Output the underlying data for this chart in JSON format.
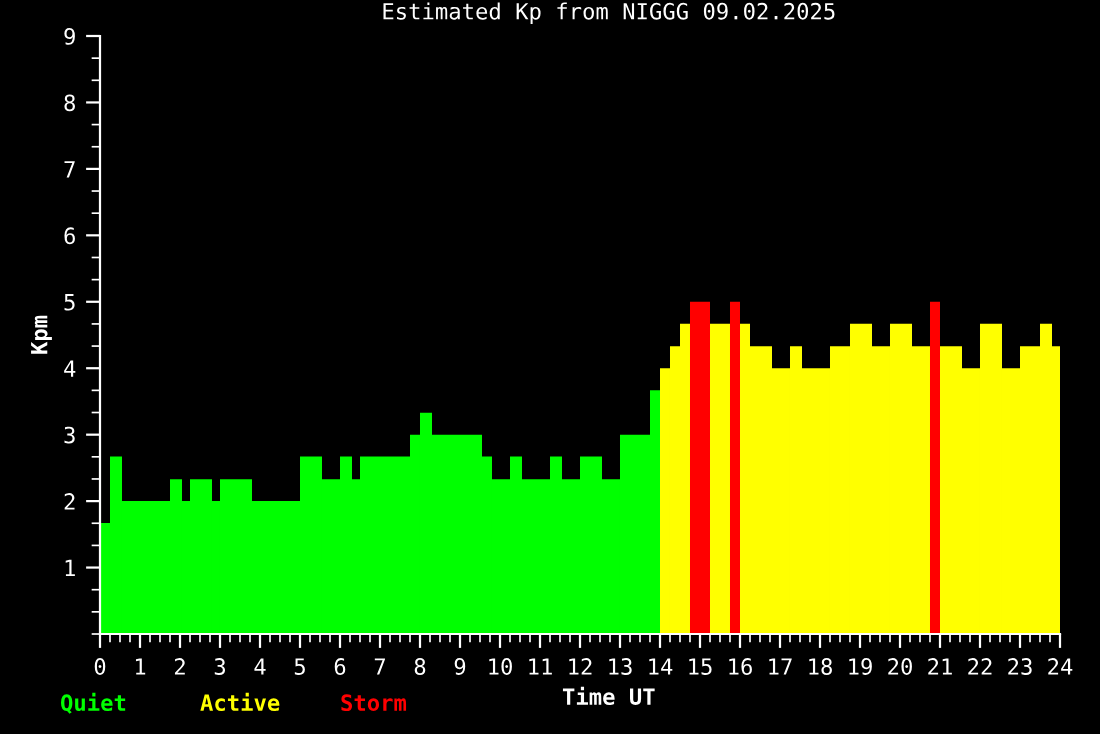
{
  "chart_data": {
    "type": "histogram",
    "title": "Estimated Kp from NIGGG 09.02.2025",
    "xlabel": "Time UT",
    "ylabel": "Kpm",
    "bins": [
      0,
      0.25,
      0.55,
      1.75,
      2.05,
      2.25,
      2.8,
      3.0,
      3.8,
      5.0,
      5.55,
      6.0,
      6.3,
      6.5,
      7.75,
      8.0,
      8.3,
      9.55,
      9.8,
      10.25,
      10.55,
      11.25,
      11.55,
      12.0,
      12.55,
      13.0,
      13.75,
      14.0,
      14.25,
      14.5,
      14.75,
      15.25,
      15.75,
      16.0,
      16.25,
      16.8,
      17.25,
      17.55,
      18.25,
      18.75,
      19.3,
      19.75,
      20.3,
      20.75,
      21.0,
      21.55,
      22.0,
      22.55,
      23.0,
      23.5,
      23.8,
      24
    ],
    "series": [
      {
        "name": "Quiet",
        "color": "#00ff00",
        "values": [
          1.67,
          2.67,
          2.0,
          2.33,
          2.0,
          2.33,
          2.0,
          2.33,
          2.0,
          2.67,
          2.33,
          2.67,
          2.33,
          2.67,
          3.0,
          3.33,
          3.0,
          2.67,
          2.33,
          2.67,
          2.33,
          2.67,
          2.33,
          2.67,
          2.33,
          3.0,
          3.67,
          null,
          null,
          null,
          null,
          null,
          null,
          null,
          null,
          null,
          null,
          null,
          null,
          null,
          null,
          null,
          null,
          null,
          null,
          null,
          null,
          null,
          null,
          null,
          null
        ]
      },
      {
        "name": "Active",
        "color": "#ffff00",
        "values": [
          null,
          null,
          null,
          null,
          null,
          null,
          null,
          null,
          null,
          null,
          null,
          null,
          null,
          null,
          null,
          null,
          null,
          null,
          null,
          null,
          null,
          null,
          null,
          null,
          null,
          null,
          null,
          4.0,
          4.33,
          4.67,
          null,
          4.67,
          null,
          4.67,
          4.33,
          4.0,
          4.33,
          4.0,
          4.33,
          4.67,
          4.33,
          4.67,
          4.33,
          null,
          4.33,
          4.0,
          4.67,
          4.0,
          4.33,
          4.67,
          4.33
        ]
      },
      {
        "name": "Storm",
        "color": "#ff0000",
        "values": [
          null,
          null,
          null,
          null,
          null,
          null,
          null,
          null,
          null,
          null,
          null,
          null,
          null,
          null,
          null,
          null,
          null,
          null,
          null,
          null,
          null,
          null,
          null,
          null,
          null,
          null,
          null,
          null,
          null,
          null,
          5.0,
          null,
          5.0,
          null,
          null,
          null,
          null,
          null,
          null,
          null,
          null,
          null,
          null,
          5.0,
          null,
          null,
          null,
          null,
          null,
          null,
          null
        ]
      }
    ],
    "xlim": [
      0,
      24
    ],
    "xticks": [
      0,
      1,
      2,
      3,
      4,
      5,
      6,
      7,
      8,
      9,
      10,
      11,
      12,
      13,
      14,
      15,
      16,
      17,
      18,
      19,
      20,
      21,
      22,
      23,
      24
    ],
    "ylim": [
      0,
      9
    ],
    "yticks": [
      1,
      2,
      3,
      4,
      5,
      6,
      7,
      8,
      9
    ],
    "grid": false,
    "legend": "bottom left"
  }
}
